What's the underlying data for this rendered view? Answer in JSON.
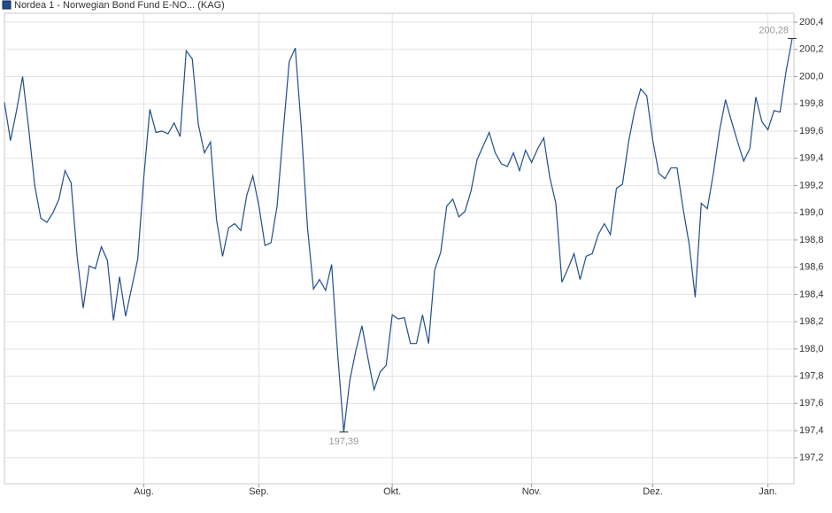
{
  "chart_data": {
    "type": "line",
    "title": "Nordea 1 - Norwegian Bond Fund E-NO... (KAG)",
    "categories": [
      null,
      null,
      null,
      null,
      null,
      null,
      null,
      null,
      null,
      null,
      null,
      null,
      null,
      null,
      null,
      null,
      null,
      null,
      null,
      null,
      null,
      null,
      null,
      "Aug.",
      null,
      null,
      null,
      null,
      null,
      null,
      null,
      null,
      null,
      null,
      null,
      null,
      null,
      null,
      null,
      null,
      null,
      null,
      "Sep.",
      null,
      null,
      null,
      null,
      null,
      null,
      null,
      null,
      null,
      null,
      null,
      null,
      null,
      null,
      null,
      null,
      null,
      null,
      null,
      null,
      null,
      "Okt.",
      null,
      null,
      null,
      null,
      null,
      null,
      null,
      null,
      null,
      null,
      null,
      null,
      null,
      null,
      null,
      null,
      null,
      null,
      null,
      null,
      null,
      null,
      "Nov.",
      null,
      null,
      null,
      null,
      null,
      null,
      null,
      null,
      null,
      null,
      null,
      null,
      null,
      null,
      null,
      null,
      null,
      null,
      null,
      "Dez.",
      null,
      null,
      null,
      null,
      null,
      null,
      null,
      null,
      null,
      null,
      null,
      null,
      null,
      null,
      null,
      null,
      null,
      null,
      "Jan.",
      null,
      null,
      null,
      null
    ],
    "series": [
      {
        "name": "Nordea 1 - Norwegian Bond Fund E-NO... (KAG)",
        "color": "#1f4e8c",
        "values": [
          199.81,
          199.53,
          199.75,
          200.0,
          199.62,
          199.2,
          198.96,
          198.93,
          199.0,
          199.1,
          199.31,
          199.22,
          198.68,
          198.3,
          198.61,
          198.59,
          198.75,
          198.65,
          198.21,
          198.53,
          198.24,
          198.45,
          198.66,
          199.26,
          199.76,
          199.59,
          199.6,
          199.58,
          199.66,
          199.56,
          200.19,
          200.13,
          199.65,
          199.44,
          199.52,
          198.95,
          198.68,
          198.89,
          198.92,
          198.87,
          199.13,
          199.27,
          199.05,
          198.76,
          198.78,
          199.05,
          199.59,
          200.11,
          200.21,
          199.62,
          198.9,
          198.44,
          198.51,
          198.43,
          198.62,
          197.96,
          197.39,
          197.77,
          197.99,
          198.17,
          197.93,
          197.7,
          197.83,
          197.88,
          198.25,
          198.22,
          198.23,
          198.04,
          198.04,
          198.25,
          198.04,
          198.58,
          198.71,
          199.05,
          199.1,
          198.97,
          199.01,
          199.16,
          199.39,
          199.49,
          199.59,
          199.44,
          199.36,
          199.34,
          199.44,
          199.31,
          199.46,
          199.37,
          199.47,
          199.55,
          199.26,
          199.07,
          198.49,
          198.59,
          198.7,
          198.51,
          198.68,
          198.7,
          198.84,
          198.92,
          198.84,
          199.18,
          199.21,
          199.52,
          199.75,
          199.91,
          199.86,
          199.53,
          199.29,
          199.25,
          199.33,
          199.33,
          199.03,
          198.77,
          198.38,
          199.07,
          199.03,
          199.29,
          199.6,
          199.83,
          199.67,
          199.52,
          199.38,
          199.47,
          199.85,
          199.67,
          199.61,
          199.75,
          199.74,
          200.04,
          200.28
        ],
        "value_labels": [
          null,
          null,
          null,
          null,
          null,
          null,
          null,
          null,
          null,
          null,
          null,
          null,
          null,
          null,
          null,
          null,
          null,
          null,
          null,
          null,
          null,
          null,
          null,
          null,
          null,
          null,
          null,
          null,
          null,
          null,
          null,
          null,
          null,
          null,
          null,
          null,
          null,
          null,
          null,
          null,
          null,
          null,
          null,
          null,
          null,
          null,
          null,
          null,
          null,
          null,
          null,
          null,
          null,
          null,
          null,
          null,
          "197,39",
          null,
          null,
          null,
          null,
          null,
          null,
          null,
          null,
          null,
          null,
          null,
          null,
          null,
          null,
          null,
          null,
          null,
          null,
          null,
          null,
          null,
          null,
          null,
          null,
          null,
          null,
          null,
          null,
          null,
          null,
          null,
          null,
          null,
          null,
          null,
          null,
          null,
          null,
          null,
          null,
          null,
          null,
          null,
          null,
          null,
          null,
          null,
          null,
          null,
          null,
          null,
          null,
          null,
          null,
          null,
          null,
          null,
          null,
          null,
          null,
          null,
          null,
          null,
          null,
          null,
          null,
          null,
          null,
          null,
          null,
          null,
          null,
          null,
          "200,28"
        ]
      }
    ],
    "ylim": [
      197.01,
      200.465
    ],
    "yticks": [
      {
        "value": 197.2,
        "label": "197,2"
      },
      {
        "value": 197.4,
        "label": "197,4"
      },
      {
        "value": 197.6,
        "label": "197,6"
      },
      {
        "value": 197.8,
        "label": "197,8"
      },
      {
        "value": 198.0,
        "label": "198,0"
      },
      {
        "value": 198.2,
        "label": "198,2"
      },
      {
        "value": 198.4,
        "label": "198,4"
      },
      {
        "value": 198.6,
        "label": "198,6"
      },
      {
        "value": 198.8,
        "label": "198,8"
      },
      {
        "value": 199.0,
        "label": "199,0"
      },
      {
        "value": 199.2,
        "label": "199,2"
      },
      {
        "value": 199.4,
        "label": "199,4"
      },
      {
        "value": 199.6,
        "label": "199,6"
      },
      {
        "value": 199.8,
        "label": "199,8"
      },
      {
        "value": 200.0,
        "label": "200,0"
      },
      {
        "value": 200.2,
        "label": "200,2"
      },
      {
        "value": 200.4,
        "label": "200,4"
      }
    ],
    "grid": true
  }
}
